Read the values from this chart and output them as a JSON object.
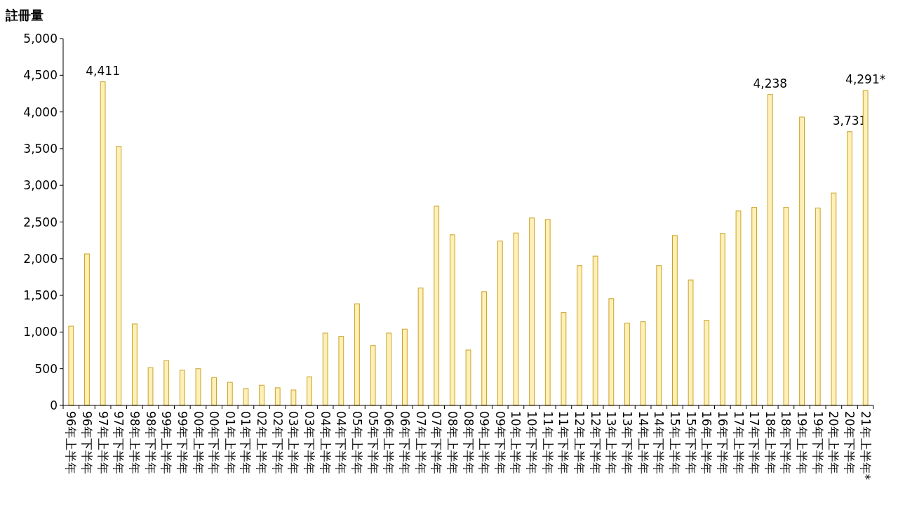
{
  "chart_data": {
    "type": "bar",
    "ylabel": "註冊量",
    "categories": [
      "96年上半年",
      "96年下半年",
      "97年上半年",
      "97年下半年",
      "98年上半年",
      "98年下半年",
      "99年上半年",
      "99年下半年",
      "00年上半年",
      "00年下半年",
      "01年上半年",
      "01年下半年",
      "02年上半年",
      "02年下半年",
      "03年上半年",
      "03年下半年",
      "04年上半年",
      "04年下半年",
      "05年上半年",
      "05年下半年",
      "06年上半年",
      "06年下半年",
      "07年上半年",
      "07年下半年",
      "08年上半年",
      "08年下半年",
      "09年上半年",
      "09年下半年",
      "10年上半年",
      "10年下半年",
      "11年上半年",
      "11年下半年",
      "12年上半年",
      "12年下半年",
      "13年上半年",
      "13年下半年",
      "14年上半年",
      "14年下半年",
      "15年上半年",
      "15年下半年",
      "16年上半年",
      "16年下半年",
      "17年上半年",
      "17年下半年",
      "18年上半年",
      "18年下半年",
      "19年上半年",
      "19年下半年",
      "20年上半年",
      "20年下半年",
      "21年上半年*"
    ],
    "values": [
      1080,
      2065,
      4411,
      3530,
      1110,
      515,
      610,
      480,
      500,
      380,
      315,
      230,
      275,
      240,
      210,
      390,
      985,
      940,
      1385,
      815,
      985,
      1040,
      1600,
      2715,
      2325,
      755,
      1550,
      2240,
      2350,
      2555,
      2535,
      1265,
      1905,
      2035,
      1455,
      1120,
      1140,
      1905,
      2315,
      1710,
      1160,
      2345,
      2650,
      2700,
      4238,
      2700,
      3930,
      2690,
      2895,
      3731,
      4291
    ],
    "value_labels": [
      null,
      null,
      "4,411",
      null,
      null,
      null,
      null,
      null,
      null,
      null,
      null,
      null,
      null,
      null,
      null,
      null,
      null,
      null,
      null,
      null,
      null,
      null,
      null,
      null,
      null,
      null,
      null,
      null,
      null,
      null,
      null,
      null,
      null,
      null,
      null,
      null,
      null,
      null,
      null,
      null,
      null,
      null,
      null,
      null,
      "4,238",
      null,
      null,
      null,
      null,
      "3,731",
      "4,291*"
    ],
    "color": "#fff0b8",
    "ylim": [
      0,
      5000
    ],
    "yticks": [
      {
        "value": 0,
        "label": "0"
      },
      {
        "value": 500,
        "label": "500"
      },
      {
        "value": 1000,
        "label": "1,000"
      },
      {
        "value": 1500,
        "label": "1,500"
      },
      {
        "value": 2000,
        "label": "2,000"
      },
      {
        "value": 2500,
        "label": "2,500"
      },
      {
        "value": 3000,
        "label": "3,000"
      },
      {
        "value": 3500,
        "label": "3,500"
      },
      {
        "value": 4000,
        "label": "4,000"
      },
      {
        "value": 4500,
        "label": "4,500"
      },
      {
        "value": 5000,
        "label": "5,000"
      }
    ],
    "grid": false
  }
}
